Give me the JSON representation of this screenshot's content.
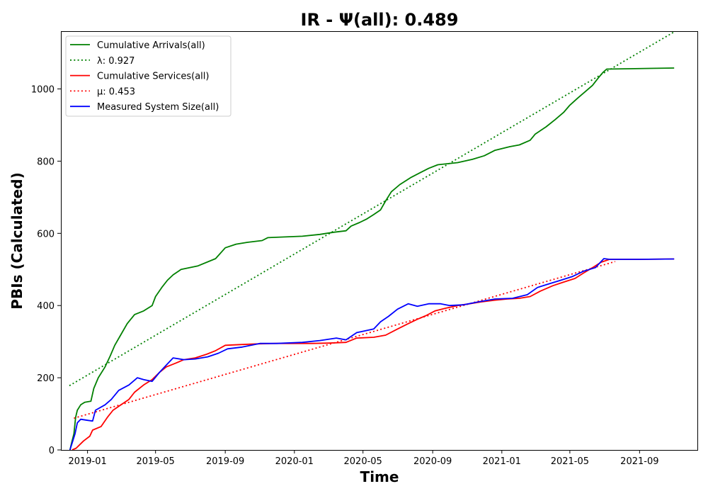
{
  "chart_data": {
    "type": "line",
    "title": "IR -  Ψ(all): 0.489",
    "xlabel": "Time",
    "ylabel": "PBIs (Calculated)",
    "xlim": [
      "2018-11-15",
      "2021-12-12"
    ],
    "ylim": [
      0,
      1160
    ],
    "x_ticks": [
      "2019-01",
      "2019-05",
      "2019-09",
      "2020-01",
      "2020-05",
      "2020-09",
      "2021-01",
      "2021-05",
      "2021-09"
    ],
    "y_ticks": [
      0,
      200,
      400,
      600,
      800,
      1000
    ],
    "grid": false,
    "legend_position": "top-left",
    "series": [
      {
        "name": "Cumulative Arrivals(all)",
        "style": "solid",
        "color": "#008000",
        "points": [
          [
            "2018-12-01",
            0
          ],
          [
            "2018-12-04",
            20
          ],
          [
            "2018-12-08",
            45
          ],
          [
            "2018-12-11",
            90
          ],
          [
            "2018-12-14",
            110
          ],
          [
            "2018-12-20",
            125
          ],
          [
            "2018-12-27",
            132
          ],
          [
            "2019-01-07",
            135
          ],
          [
            "2019-01-12",
            170
          ],
          [
            "2019-01-20",
            200
          ],
          [
            "2019-02-01",
            230
          ],
          [
            "2019-02-10",
            260
          ],
          [
            "2019-02-18",
            290
          ],
          [
            "2019-03-01",
            320
          ],
          [
            "2019-03-12",
            350
          ],
          [
            "2019-03-25",
            375
          ],
          [
            "2019-04-10",
            385
          ],
          [
            "2019-04-25",
            400
          ],
          [
            "2019-05-01",
            425
          ],
          [
            "2019-05-12",
            450
          ],
          [
            "2019-05-22",
            470
          ],
          [
            "2019-06-01",
            485
          ],
          [
            "2019-06-15",
            500
          ],
          [
            "2019-07-15",
            510
          ],
          [
            "2019-08-15",
            530
          ],
          [
            "2019-09-01",
            560
          ],
          [
            "2019-09-20",
            570
          ],
          [
            "2019-10-10",
            575
          ],
          [
            "2019-11-05",
            580
          ],
          [
            "2019-11-15",
            588
          ],
          [
            "2019-12-15",
            590
          ],
          [
            "2020-01-15",
            592
          ],
          [
            "2020-02-15",
            597
          ],
          [
            "2020-03-10",
            603
          ],
          [
            "2020-04-01",
            607
          ],
          [
            "2020-04-10",
            620
          ],
          [
            "2020-04-25",
            630
          ],
          [
            "2020-05-08",
            640
          ],
          [
            "2020-05-20",
            652
          ],
          [
            "2020-06-01",
            665
          ],
          [
            "2020-06-10",
            690
          ],
          [
            "2020-06-20",
            715
          ],
          [
            "2020-07-05",
            735
          ],
          [
            "2020-07-25",
            755
          ],
          [
            "2020-08-10",
            768
          ],
          [
            "2020-08-25",
            780
          ],
          [
            "2020-09-10",
            790
          ],
          [
            "2020-10-15",
            796
          ],
          [
            "2020-11-10",
            805
          ],
          [
            "2020-12-01",
            815
          ],
          [
            "2020-12-20",
            830
          ],
          [
            "2021-01-15",
            840
          ],
          [
            "2021-02-01",
            845
          ],
          [
            "2021-02-20",
            858
          ],
          [
            "2021-03-01",
            875
          ],
          [
            "2021-03-20",
            895
          ],
          [
            "2021-04-05",
            915
          ],
          [
            "2021-04-20",
            935
          ],
          [
            "2021-05-01",
            955
          ],
          [
            "2021-05-15",
            975
          ],
          [
            "2021-05-30",
            995
          ],
          [
            "2021-06-10",
            1010
          ],
          [
            "2021-06-20",
            1030
          ],
          [
            "2021-06-28",
            1045
          ],
          [
            "2021-07-05",
            1055
          ],
          [
            "2021-08-15",
            1056
          ],
          [
            "2021-09-20",
            1057
          ],
          [
            "2021-11-01",
            1058
          ]
        ]
      },
      {
        "name": "λ: 0.927",
        "style": "dotted",
        "color": "#008000",
        "points": [
          [
            "2018-11-30",
            178
          ],
          [
            "2021-11-01",
            1158
          ]
        ]
      },
      {
        "name": "Cumulative Services(all)",
        "style": "solid",
        "color": "#ff0000",
        "points": [
          [
            "2018-12-05",
            0
          ],
          [
            "2018-12-12",
            5
          ],
          [
            "2018-12-25",
            25
          ],
          [
            "2019-01-05",
            38
          ],
          [
            "2019-01-10",
            55
          ],
          [
            "2019-01-25",
            65
          ],
          [
            "2019-02-05",
            90
          ],
          [
            "2019-02-15",
            110
          ],
          [
            "2019-03-01",
            125
          ],
          [
            "2019-03-15",
            140
          ],
          [
            "2019-03-25",
            160
          ],
          [
            "2019-04-10",
            180
          ],
          [
            "2019-04-25",
            195
          ],
          [
            "2019-05-08",
            215
          ],
          [
            "2019-05-20",
            230
          ],
          [
            "2019-06-05",
            240
          ],
          [
            "2019-06-20",
            250
          ],
          [
            "2019-07-10",
            255
          ],
          [
            "2019-07-30",
            265
          ],
          [
            "2019-08-15",
            275
          ],
          [
            "2019-09-01",
            290
          ],
          [
            "2019-10-01",
            292
          ],
          [
            "2019-11-01",
            294
          ],
          [
            "2019-12-01",
            295
          ],
          [
            "2020-01-01",
            295
          ],
          [
            "2020-02-01",
            295
          ],
          [
            "2020-03-01",
            296
          ],
          [
            "2020-04-01",
            298
          ],
          [
            "2020-04-20",
            310
          ],
          [
            "2020-05-20",
            312
          ],
          [
            "2020-06-10",
            318
          ],
          [
            "2020-07-01",
            335
          ],
          [
            "2020-07-20",
            350
          ],
          [
            "2020-08-05",
            362
          ],
          [
            "2020-08-20",
            372
          ],
          [
            "2020-09-05",
            385
          ],
          [
            "2020-09-25",
            393
          ],
          [
            "2020-10-15",
            400
          ],
          [
            "2020-11-05",
            405
          ],
          [
            "2020-11-25",
            410
          ],
          [
            "2020-12-20",
            415
          ],
          [
            "2021-01-10",
            418
          ],
          [
            "2021-02-01",
            420
          ],
          [
            "2021-02-20",
            425
          ],
          [
            "2021-03-10",
            440
          ],
          [
            "2021-04-01",
            455
          ],
          [
            "2021-04-20",
            465
          ],
          [
            "2021-05-10",
            475
          ],
          [
            "2021-05-25",
            490
          ],
          [
            "2021-06-10",
            505
          ],
          [
            "2021-06-25",
            520
          ],
          [
            "2021-07-10",
            528
          ],
          [
            "2021-09-01",
            528
          ],
          [
            "2021-11-01",
            529
          ]
        ]
      },
      {
        "name": "μ: 0.453",
        "style": "dotted",
        "color": "#ff0000",
        "points": [
          [
            "2018-12-08",
            88
          ],
          [
            "2021-07-20",
            522
          ]
        ]
      },
      {
        "name": "Measured System Size(all)",
        "style": "solid",
        "color": "#0000ff",
        "points": [
          [
            "2018-12-01",
            0
          ],
          [
            "2018-12-05",
            20
          ],
          [
            "2018-12-10",
            45
          ],
          [
            "2018-12-14",
            75
          ],
          [
            "2018-12-20",
            85
          ],
          [
            "2019-01-01",
            82
          ],
          [
            "2019-01-10",
            80
          ],
          [
            "2019-01-15",
            110
          ],
          [
            "2019-02-01",
            125
          ],
          [
            "2019-02-12",
            140
          ],
          [
            "2019-02-25",
            165
          ],
          [
            "2019-03-15",
            180
          ],
          [
            "2019-03-30",
            200
          ],
          [
            "2019-04-10",
            195
          ],
          [
            "2019-04-25",
            190
          ],
          [
            "2019-05-08",
            215
          ],
          [
            "2019-05-20",
            235
          ],
          [
            "2019-06-01",
            255
          ],
          [
            "2019-06-20",
            250
          ],
          [
            "2019-07-10",
            252
          ],
          [
            "2019-08-01",
            258
          ],
          [
            "2019-08-20",
            268
          ],
          [
            "2019-09-05",
            280
          ],
          [
            "2019-10-01",
            285
          ],
          [
            "2019-11-01",
            295
          ],
          [
            "2019-12-01",
            295
          ],
          [
            "2020-01-15",
            298
          ],
          [
            "2020-02-15",
            303
          ],
          [
            "2020-03-15",
            310
          ],
          [
            "2020-04-01",
            305
          ],
          [
            "2020-04-20",
            325
          ],
          [
            "2020-05-20",
            335
          ],
          [
            "2020-06-01",
            355
          ],
          [
            "2020-06-15",
            370
          ],
          [
            "2020-07-01",
            390
          ],
          [
            "2020-07-20",
            405
          ],
          [
            "2020-08-05",
            398
          ],
          [
            "2020-08-25",
            405
          ],
          [
            "2020-09-15",
            405
          ],
          [
            "2020-10-01",
            400
          ],
          [
            "2020-10-25",
            402
          ],
          [
            "2020-11-20",
            410
          ],
          [
            "2020-12-20",
            418
          ],
          [
            "2021-01-20",
            420
          ],
          [
            "2021-02-15",
            430
          ],
          [
            "2021-03-05",
            450
          ],
          [
            "2021-03-25",
            460
          ],
          [
            "2021-04-15",
            470
          ],
          [
            "2021-05-05",
            480
          ],
          [
            "2021-05-25",
            495
          ],
          [
            "2021-06-15",
            505
          ],
          [
            "2021-06-30",
            530
          ],
          [
            "2021-07-10",
            528
          ],
          [
            "2021-09-01",
            528
          ],
          [
            "2021-11-01",
            529
          ]
        ]
      }
    ]
  }
}
